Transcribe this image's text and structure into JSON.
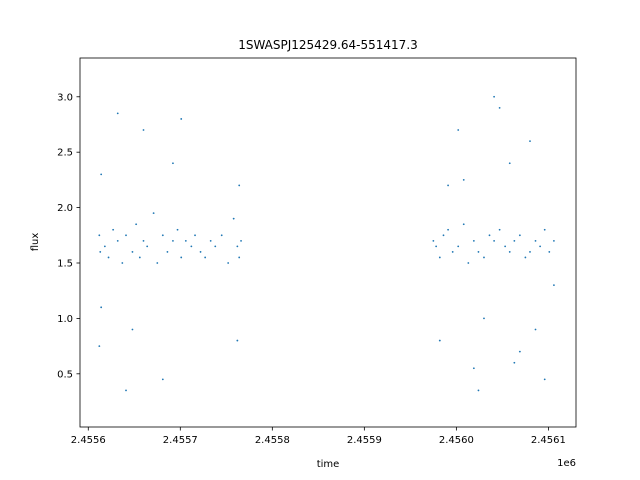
{
  "chart_data": {
    "type": "scatter",
    "title": "1SWASPJ125429.64-551417.3",
    "xlabel": "time",
    "ylabel": "flux",
    "x_offset_label": "1e6",
    "xlim": [
      2455591,
      2456130
    ],
    "ylim": [
      0.02,
      3.35
    ],
    "x_ticks": [
      2455600,
      2455700,
      2455800,
      2455900,
      2456000,
      2456100
    ],
    "x_tick_labels": [
      "2.4556",
      "2.4557",
      "2.4558",
      "2.4559",
      "2.4560",
      "2.4561"
    ],
    "y_ticks": [
      0.5,
      1.0,
      1.5,
      2.0,
      2.5,
      3.0
    ],
    "y_tick_labels": [
      "0.5",
      "1.0",
      "1.5",
      "2.0",
      "2.5",
      "3.0"
    ],
    "grid": false,
    "series": [
      {
        "color": "#1f77b4",
        "marker_color": "#1f77b4",
        "x": [
          2455612,
          2455613,
          2455614,
          2455618,
          2455622,
          2455627,
          2455632,
          2455637,
          2455641,
          2455648,
          2455652,
          2455656,
          2455660,
          2455664,
          2455671,
          2455675,
          2455681,
          2455686,
          2455692,
          2455697,
          2455701,
          2455706,
          2455712,
          2455716,
          2455722,
          2455727,
          2455733,
          2455738,
          2455745,
          2455752,
          2455758,
          2455762,
          2455764,
          2455766,
          2455612,
          2455632,
          2455641,
          2455660,
          2455681,
          2455701,
          2455762,
          2455614,
          2455648,
          2455692,
          2455764,
          2455975,
          2455978,
          2455982,
          2455986,
          2455991,
          2455996,
          2456002,
          2456008,
          2456013,
          2456019,
          2456024,
          2456030,
          2456036,
          2456041,
          2456047,
          2456053,
          2456058,
          2456063,
          2456069,
          2456075,
          2456080,
          2456086,
          2456091,
          2456096,
          2456101,
          2456106,
          2455982,
          2456002,
          2456024,
          2456041,
          2456063,
          2456080,
          2456096,
          2456008,
          2456030,
          2456058,
          2456086,
          2456106,
          2455991,
          2456019,
          2456047,
          2456069
        ],
        "y": [
          1.75,
          1.6,
          2.3,
          1.65,
          1.55,
          1.8,
          1.7,
          1.5,
          1.75,
          1.6,
          1.85,
          1.55,
          1.7,
          1.65,
          1.95,
          1.5,
          1.75,
          1.6,
          1.7,
          1.8,
          1.55,
          1.7,
          1.65,
          1.75,
          1.6,
          1.55,
          1.7,
          1.65,
          1.75,
          1.5,
          1.9,
          1.65,
          1.55,
          1.7,
          0.75,
          2.85,
          0.35,
          2.7,
          0.45,
          2.8,
          0.8,
          1.1,
          0.9,
          2.4,
          2.2,
          1.7,
          1.65,
          1.55,
          1.75,
          1.8,
          1.6,
          1.65,
          1.85,
          1.5,
          1.7,
          1.6,
          1.55,
          1.75,
          1.7,
          1.8,
          1.65,
          1.6,
          1.7,
          1.75,
          1.55,
          1.6,
          1.7,
          1.65,
          1.8,
          1.6,
          1.7,
          0.8,
          2.7,
          0.35,
          3.0,
          0.6,
          2.6,
          0.45,
          2.25,
          1.0,
          2.4,
          0.9,
          1.3,
          2.2,
          0.55,
          2.9,
          0.7
        ]
      }
    ]
  }
}
